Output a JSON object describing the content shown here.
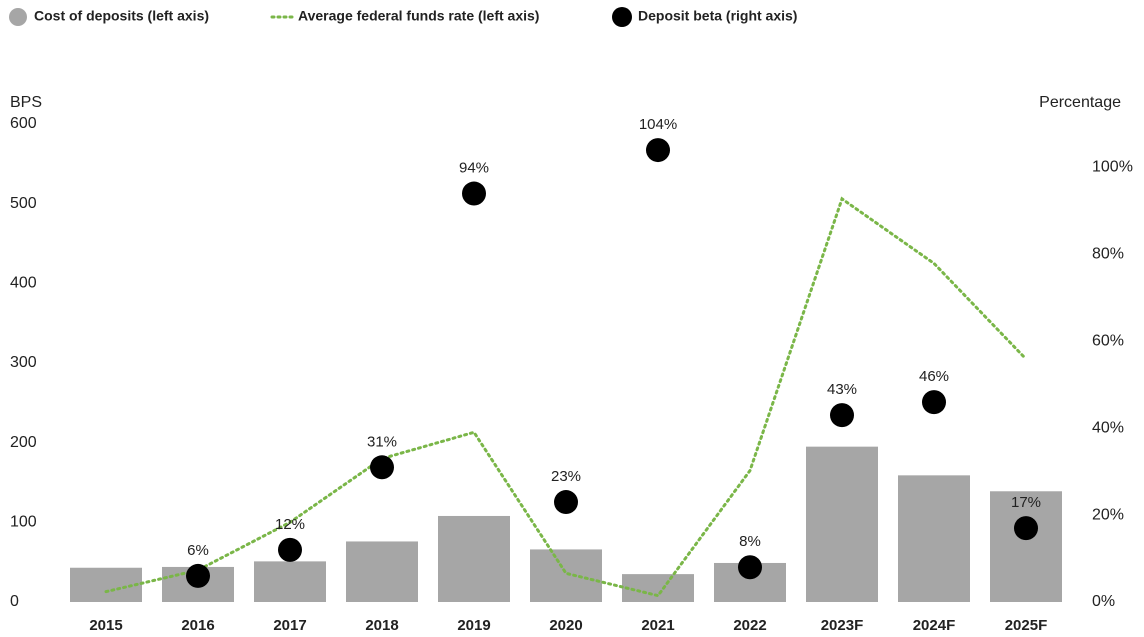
{
  "chart_data": {
    "type": "bar",
    "categories": [
      "2015",
      "2016",
      "2017",
      "2018",
      "2019",
      "2020",
      "2021",
      "2022",
      "2023F",
      "2024F",
      "2025F"
    ],
    "series": [
      {
        "name": "Cost of deposits (left axis)",
        "type": "bar",
        "color": "#a6a6a6",
        "values": [
          43,
          44,
          51,
          76,
          108,
          66,
          35,
          49,
          195,
          159,
          139
        ]
      },
      {
        "name": "Average federal funds rate (left axis)",
        "type": "line",
        "color": "#7ab648",
        "values": [
          13,
          40,
          100,
          180,
          213,
          36,
          8,
          165,
          506,
          425,
          305
        ]
      },
      {
        "name": "Deposit beta (right axis)",
        "type": "scatter",
        "axis": "y2",
        "color": "#000000",
        "values": [
          null,
          6,
          12,
          31,
          94,
          23,
          104,
          8,
          43,
          46,
          17
        ],
        "value_labels": [
          null,
          "6%",
          "12%",
          "31%",
          "94%",
          "23%",
          "104%",
          "8%",
          "43%",
          "46%",
          "17%"
        ]
      }
    ],
    "y_label": "BPS",
    "y2_label": "Percentage",
    "ylim": [
      0,
      600
    ],
    "yticks": [
      0,
      100,
      200,
      300,
      400,
      500,
      600
    ],
    "y2lim": [
      0,
      110
    ],
    "y2ticks": [
      {
        "value": 0,
        "label": "0%"
      },
      {
        "value": 20,
        "label": "20%"
      },
      {
        "value": 40,
        "label": "40%"
      },
      {
        "value": 60,
        "label": "60%"
      },
      {
        "value": 80,
        "label": "80%"
      },
      {
        "value": 100,
        "label": "100%"
      }
    ],
    "grid": false
  }
}
